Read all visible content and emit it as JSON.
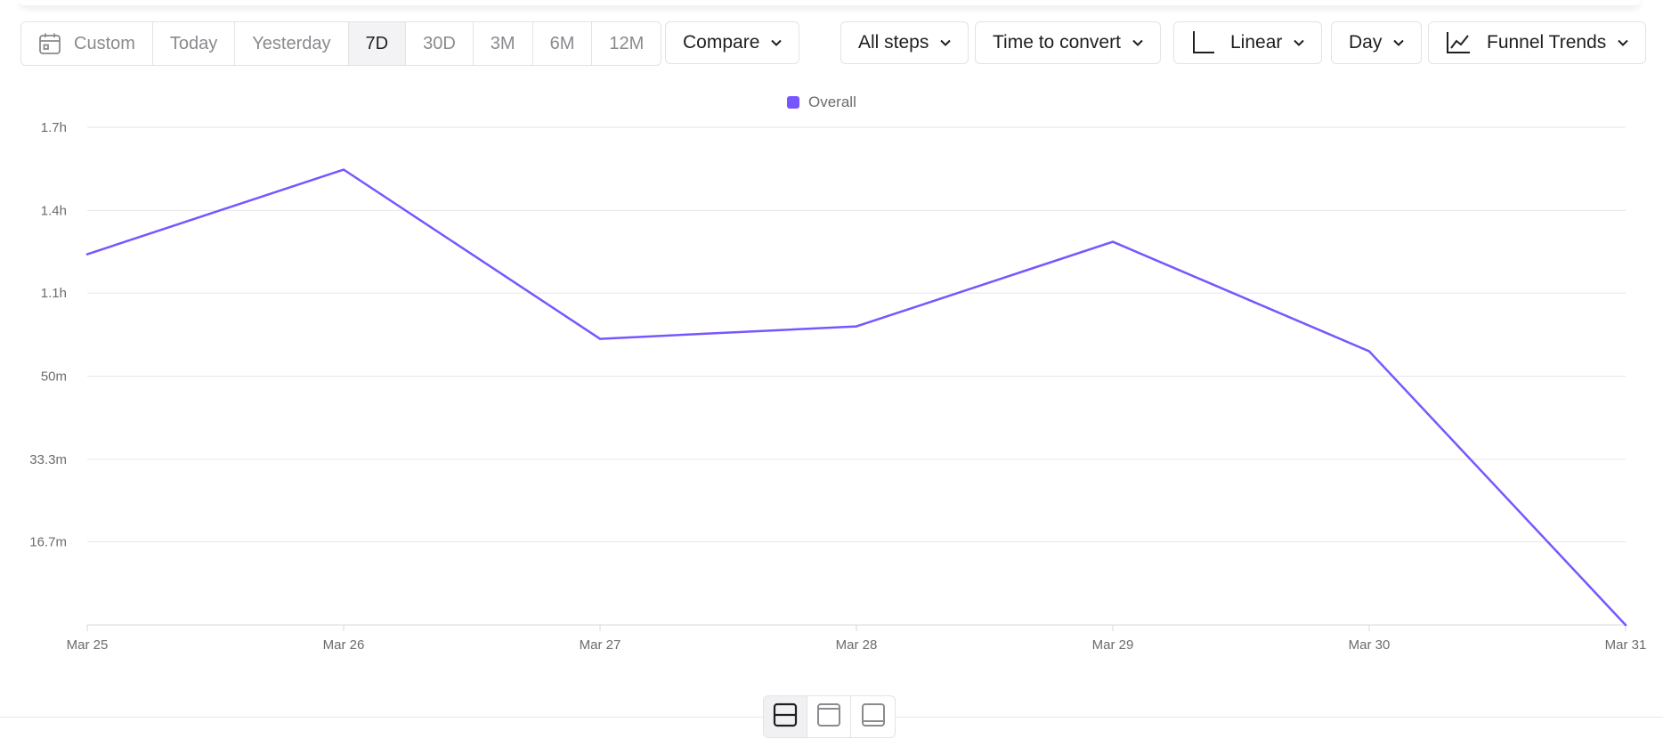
{
  "date_range": {
    "custom_label": "Custom",
    "options": [
      "Today",
      "Yesterday",
      "7D",
      "30D",
      "3M",
      "6M",
      "12M"
    ],
    "selected": "7D"
  },
  "compare_label": "Compare",
  "steps_label": "All steps",
  "metric_label": "Time to convert",
  "scale_label": "Linear",
  "interval_label": "Day",
  "view_label": "Funnel Trends",
  "colors": {
    "accent": "#7856ff",
    "grid": "#e6e6e8",
    "text_muted": "#6b6b70"
  },
  "layout_switch": {
    "options": [
      "split-view",
      "chart-only",
      "table-only"
    ],
    "selected": "split-view"
  },
  "chart_data": {
    "type": "line",
    "legend": [
      "Overall"
    ],
    "legend_position": "top-center",
    "grid": true,
    "x": [
      "Mar 25",
      "Mar 26",
      "Mar 27",
      "Mar 28",
      "Mar 29",
      "Mar 30",
      "Mar 31"
    ],
    "y_tick_labels": [
      "16.7m",
      "33.3m",
      "50m",
      "1.1h",
      "1.4h",
      "1.7h"
    ],
    "y_tick_values_min": [
      16.7,
      33.3,
      50,
      66.7,
      83.3,
      100
    ],
    "ylim_min": [
      0,
      100
    ],
    "series": [
      {
        "name": "Overall",
        "unit": "minutes",
        "values": [
          74.5,
          91.5,
          57.5,
          60,
          77,
          55,
          0
        ]
      }
    ]
  }
}
